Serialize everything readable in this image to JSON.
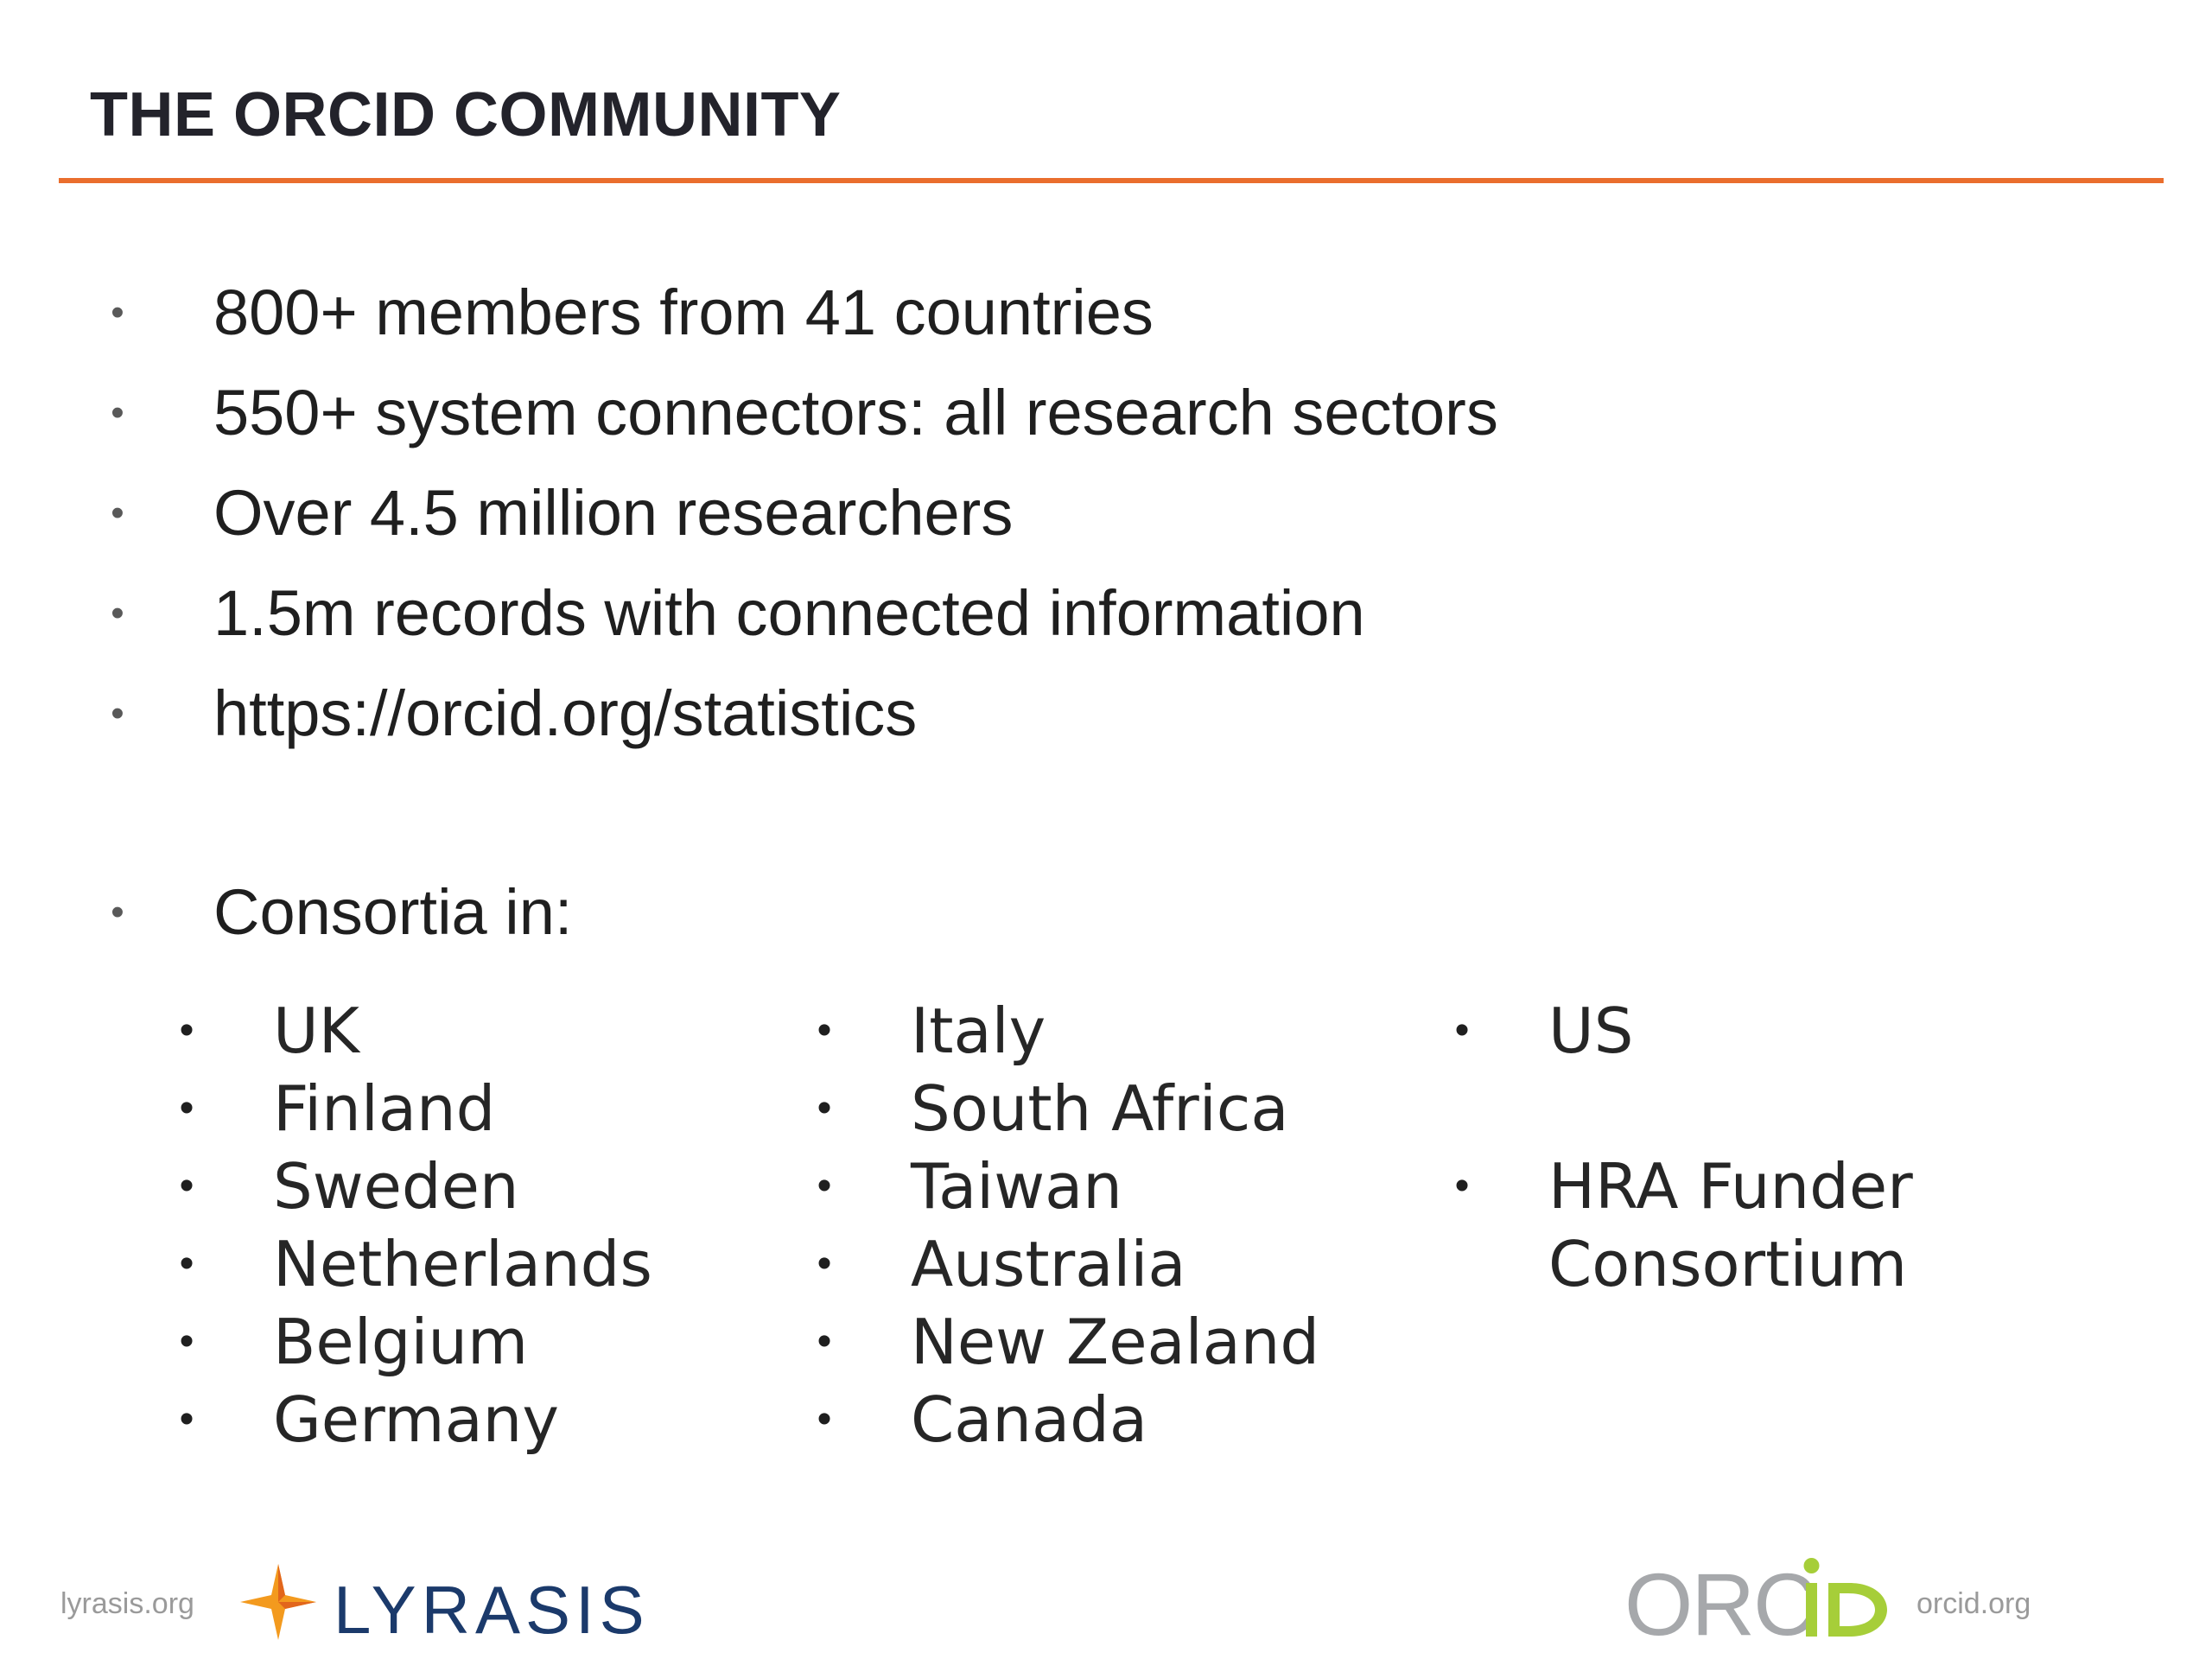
{
  "slide": {
    "title": "THE ORCID COMMUNITY"
  },
  "bullets": [
    "800+ members from 41 countries",
    "550+ system connectors: all research sectors",
    "Over 4.5 million researchers",
    "1.5m records with connected information",
    "https://orcid.org/statistics",
    "Consortia in:"
  ],
  "consortia": {
    "column1": [
      "UK",
      "Finland",
      "Sweden",
      "Netherlands",
      "Belgium",
      "Germany"
    ],
    "column2": [
      "Italy",
      "South Africa",
      "Taiwan",
      "Australia",
      "New Zealand",
      "Canada"
    ],
    "column3": [
      "US",
      "HRA Funder Consortium"
    ]
  },
  "footer": {
    "left_url": "lyrasis.org",
    "lyrasis_logo_text": "LYRASIS",
    "orcid_logo_text": "ORCID",
    "right_url": "orcid.org"
  },
  "colors": {
    "accent_rule": "#ea6e2d",
    "lyrasis_navy": "#1b3a6b",
    "lyrasis_star": "#f39a1e",
    "orcid_gray": "#a6a8ab",
    "orcid_green": "#a6ce39"
  },
  "icons": {
    "bullet": "bullet-dot",
    "lyrasis": "lyrasis-star-icon",
    "orcid": "orcid-logo-icon"
  }
}
